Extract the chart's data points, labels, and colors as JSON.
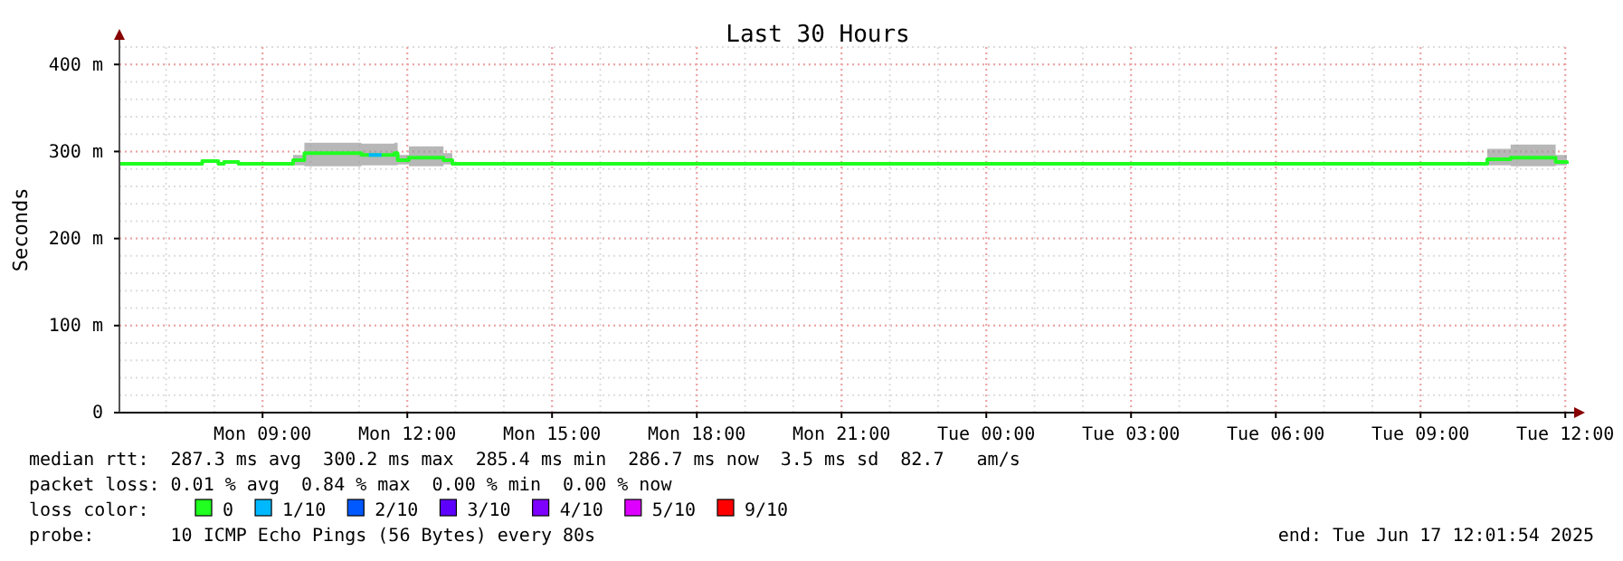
{
  "chart_data": {
    "type": "step",
    "title": "Last 30 Hours",
    "ylabel": "Seconds",
    "legend_title": "loss color:",
    "legend": "bottom",
    "grid": true,
    "xlim": [
      "2025-06-16T06:02",
      "2025-06-17T12:02"
    ],
    "xticks": [
      {
        "value": "2025-06-16T09:00",
        "label": "Mon 09:00"
      },
      {
        "value": "2025-06-16T12:00",
        "label": "Mon 12:00"
      },
      {
        "value": "2025-06-16T15:00",
        "label": "Mon 15:00"
      },
      {
        "value": "2025-06-16T18:00",
        "label": "Mon 18:00"
      },
      {
        "value": "2025-06-16T21:00",
        "label": "Mon 21:00"
      },
      {
        "value": "2025-06-17T00:00",
        "label": "Tue 00:00"
      },
      {
        "value": "2025-06-17T03:00",
        "label": "Tue 03:00"
      },
      {
        "value": "2025-06-17T06:00",
        "label": "Tue 06:00"
      },
      {
        "value": "2025-06-17T09:00",
        "label": "Tue 09:00"
      },
      {
        "value": "2025-06-17T12:00",
        "label": "Tue 12:00"
      }
    ],
    "ylim": [
      0,
      420
    ],
    "yticks": [
      {
        "value": 0,
        "label": "0"
      },
      {
        "value": 100,
        "label": "100 m"
      },
      {
        "value": 200,
        "label": "200 m"
      },
      {
        "value": 300,
        "label": "300 m"
      },
      {
        "value": 400,
        "label": "400 m"
      }
    ],
    "series": [
      {
        "name": "0",
        "color": "#20ff20",
        "x": [
          "2025-06-16T06:02",
          "2025-06-16T07:45",
          "2025-06-16T08:05",
          "2025-06-16T08:12",
          "2025-06-16T08:30",
          "2025-06-16T09:38",
          "2025-06-16T09:52",
          "2025-06-16T11:03",
          "2025-06-16T11:44",
          "2025-06-16T11:48",
          "2025-06-16T12:02",
          "2025-06-16T12:45",
          "2025-06-16T12:56",
          "2025-06-17T10:23",
          "2025-06-17T10:52",
          "2025-06-17T11:48",
          "2025-06-17T12:02"
        ],
        "values": [
          286,
          289,
          286,
          288,
          286,
          290,
          298,
          296,
          298,
          290,
          293,
          290,
          286,
          291,
          293,
          288,
          286
        ],
        "lower": [
          285,
          287,
          285,
          286,
          285,
          284,
          283,
          284,
          284,
          285,
          283,
          285,
          285,
          284,
          283,
          284,
          285
        ],
        "upper": [
          287,
          290,
          287,
          289,
          287,
          296,
          310,
          309,
          310,
          296,
          306,
          298,
          287,
          303,
          308,
          296,
          287
        ]
      },
      {
        "name": "1/10",
        "color": "#00b8ff",
        "x": [
          "2025-06-16T11:12",
          "2025-06-16T11:28"
        ],
        "values": [
          296,
          296
        ]
      },
      {
        "name": "2/10",
        "color": "#0059ff"
      },
      {
        "name": "3/10",
        "color": "#5e00ff"
      },
      {
        "name": "4/10",
        "color": "#7e00ff"
      },
      {
        "name": "5/10",
        "color": "#dd00ff"
      },
      {
        "name": "9/10",
        "color": "#ff0000"
      }
    ],
    "annotations": [
      "median rtt:  287.3 ms avg  300.2 ms max  285.4 ms min  286.7 ms now  3.5 ms sd  82.7   am/s",
      "packet loss: 0.01 % avg  0.84 % max  0.00 % min  0.00 % now",
      "probe:       10 ICMP Echo Pings (56 Bytes) every 80s",
      "end: Tue Jun 17 12:01:54 2025"
    ]
  }
}
